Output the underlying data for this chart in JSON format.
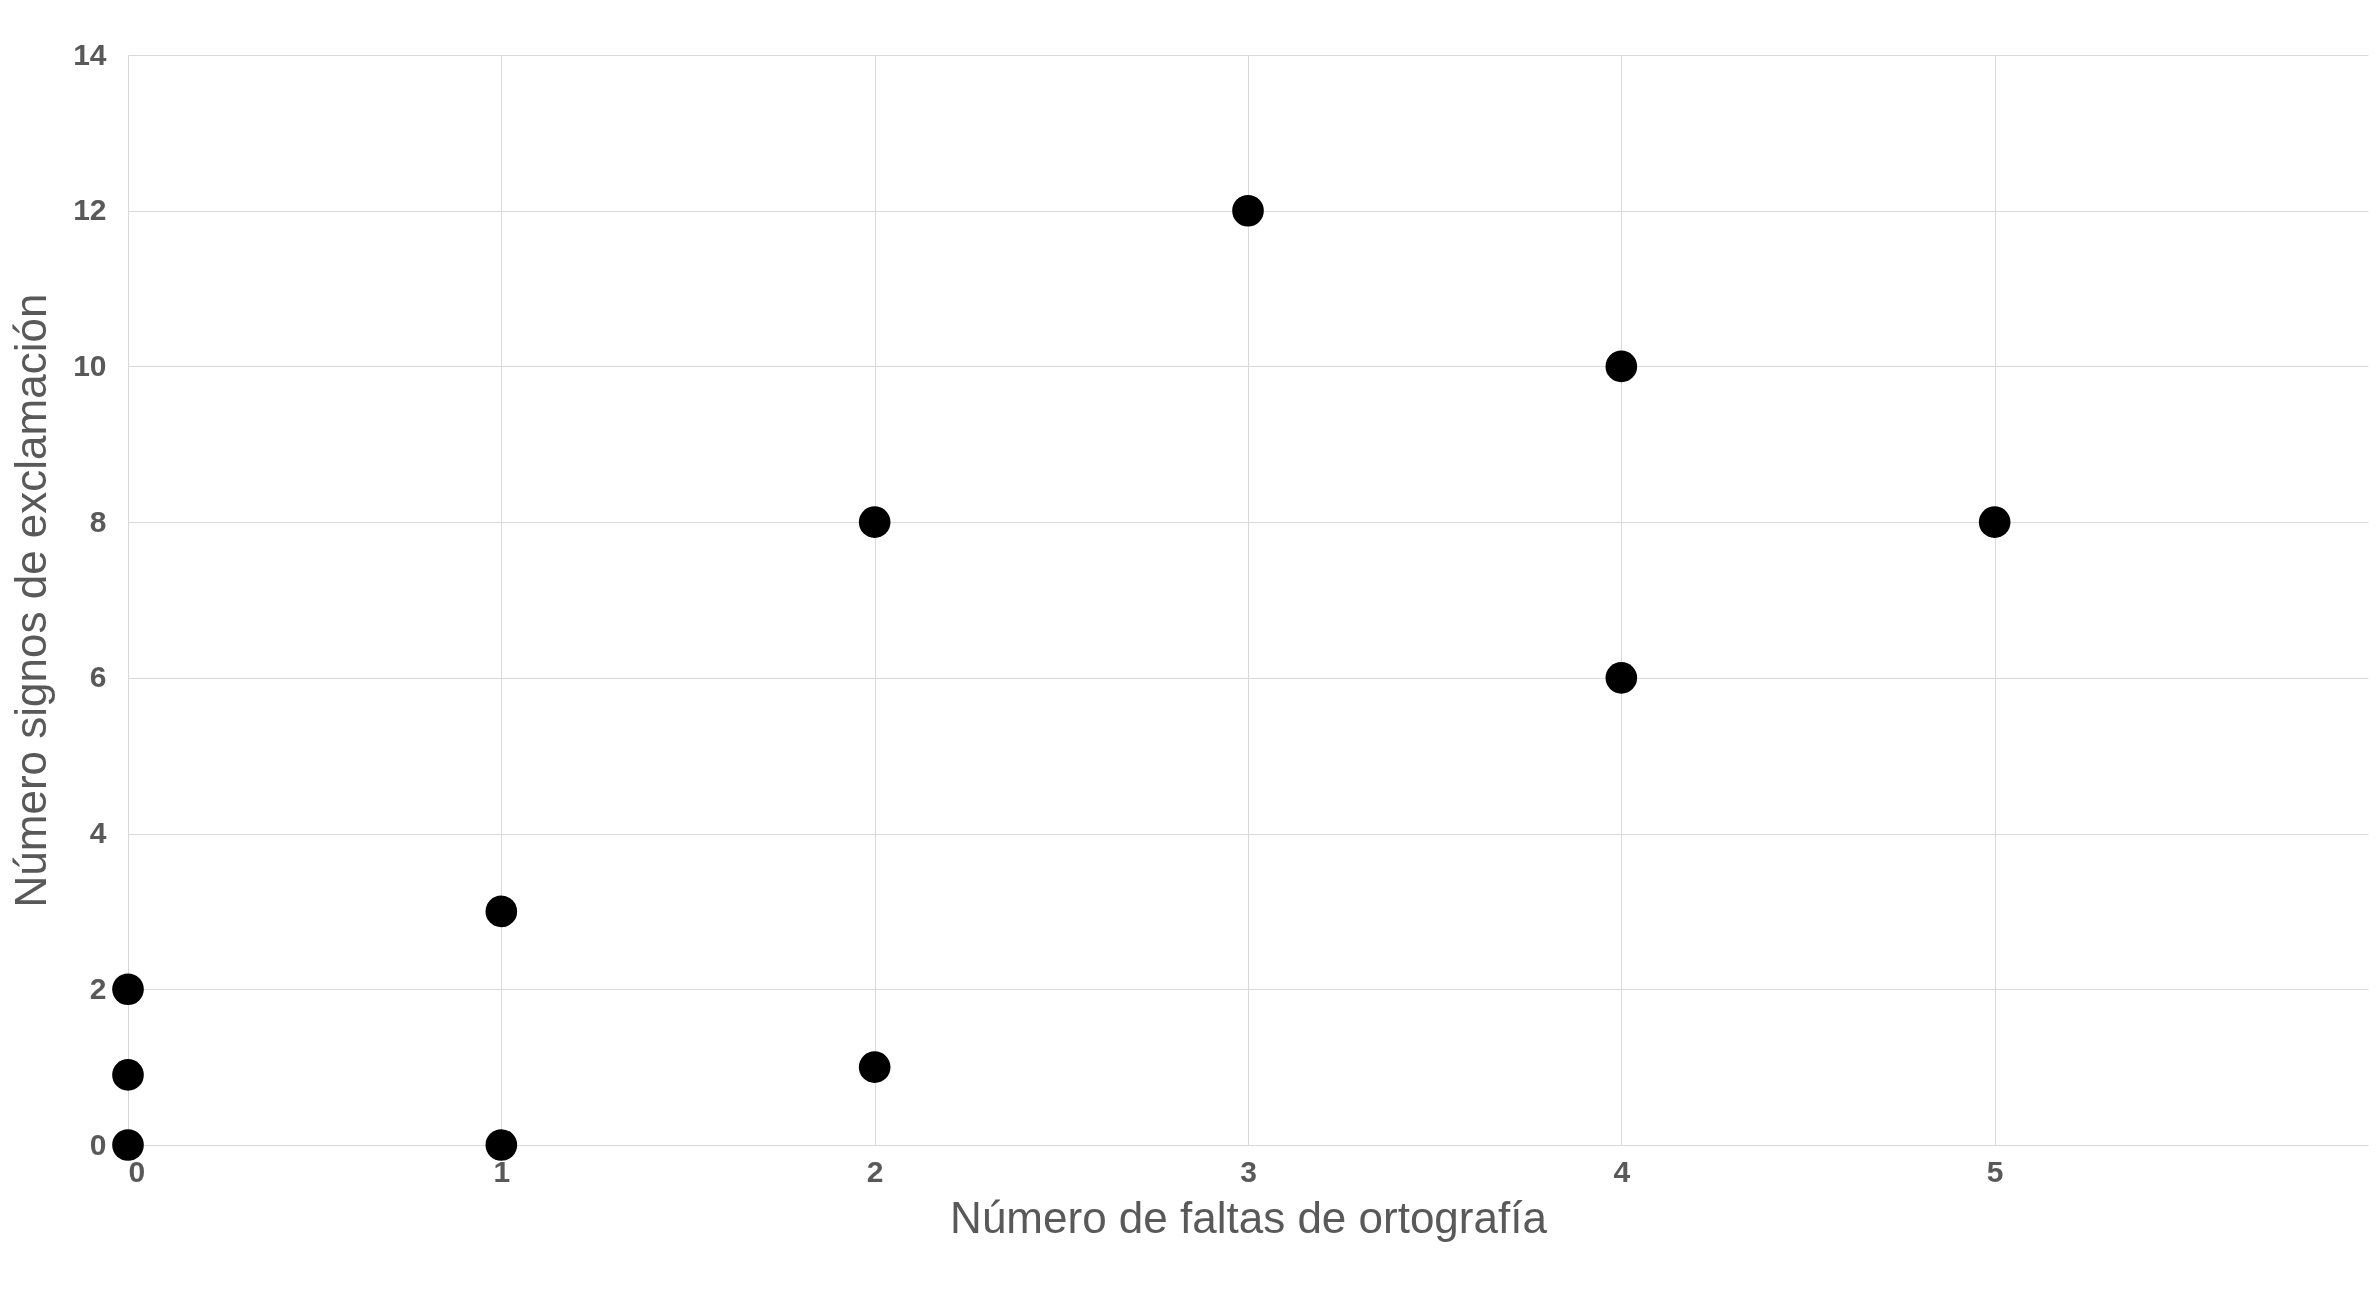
{
  "chart_data": {
    "type": "scatter",
    "xlabel": "Número de faltas de ortografía",
    "ylabel": "Número signos de exclamación",
    "x": [
      0,
      0,
      0,
      1,
      1,
      2,
      2,
      3,
      4,
      4,
      5
    ],
    "series": [
      {
        "color": "#000000",
        "values": [
          0,
          0.9,
          2,
          0,
          3,
          1,
          8,
          12,
          10,
          6,
          8
        ]
      }
    ],
    "xlim": [
      0,
      6
    ],
    "xticks": [
      0,
      1,
      2,
      3,
      4,
      5
    ],
    "ylim": [
      0,
      14
    ],
    "yticks": [
      0,
      2,
      4,
      6,
      8,
      10,
      12,
      14
    ],
    "grid": true,
    "marker": "circle",
    "legend": false
  }
}
